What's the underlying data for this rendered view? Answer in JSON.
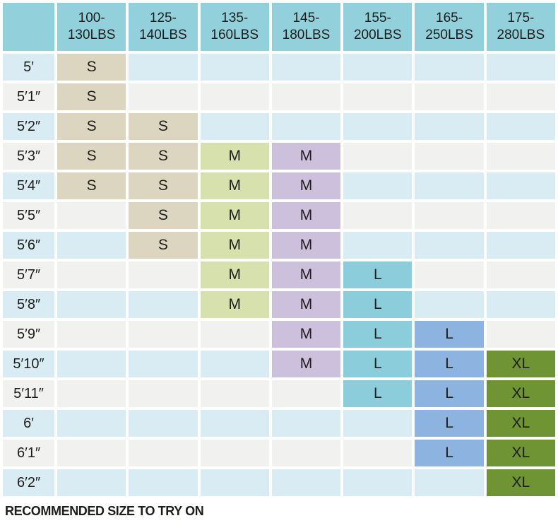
{
  "colors": {
    "page_background": "#ffffff",
    "header_fill": "#92d0dc",
    "row_fill_blue": "#daecf3",
    "row_fill_gray": "#f1f1ef",
    "size_s_fill": "#dcd6c0",
    "size_m_135_160_fill": "#d6e1ad",
    "size_m_145_180_fill": "#cdc0dd",
    "size_l_155_200_fill": "#8bcdda",
    "size_l_165_250_fill": "#8db4e0",
    "size_xl_fill": "#6e9433",
    "text": "#1d1d1b"
  },
  "chart_data": {
    "type": "table",
    "title": "",
    "corner_label": "",
    "weight_columns": [
      "100-130LBS",
      "125-140LBS",
      "135-160LBS",
      "145-180LBS",
      "155-200LBS",
      "165-250LBS",
      "175-280LBS"
    ],
    "column_fill_keys": [
      "size_s_fill",
      "size_s_fill",
      "size_m_135_160_fill",
      "size_m_145_180_fill",
      "size_l_155_200_fill",
      "size_l_165_250_fill",
      "size_xl_fill"
    ],
    "rows": [
      {
        "height": "5′",
        "sizes": [
          "S",
          null,
          null,
          null,
          null,
          null,
          null
        ]
      },
      {
        "height": "5′1″",
        "sizes": [
          "S",
          null,
          null,
          null,
          null,
          null,
          null
        ]
      },
      {
        "height": "5′2″",
        "sizes": [
          "S",
          "S",
          null,
          null,
          null,
          null,
          null
        ]
      },
      {
        "height": "5′3″",
        "sizes": [
          "S",
          "S",
          "M",
          "M",
          null,
          null,
          null
        ]
      },
      {
        "height": "5′4″",
        "sizes": [
          "S",
          "S",
          "M",
          "M",
          null,
          null,
          null
        ]
      },
      {
        "height": "5′5″",
        "sizes": [
          null,
          "S",
          "M",
          "M",
          null,
          null,
          null
        ]
      },
      {
        "height": "5′6″",
        "sizes": [
          null,
          "S",
          "M",
          "M",
          null,
          null,
          null
        ]
      },
      {
        "height": "5′7″",
        "sizes": [
          null,
          null,
          "M",
          "M",
          "L",
          null,
          null
        ]
      },
      {
        "height": "5′8″",
        "sizes": [
          null,
          null,
          "M",
          "M",
          "L",
          null,
          null
        ]
      },
      {
        "height": "5′9″",
        "sizes": [
          null,
          null,
          null,
          "M",
          "L",
          "L",
          null
        ]
      },
      {
        "height": "5′10″",
        "sizes": [
          null,
          null,
          null,
          "M",
          "L",
          "L",
          "XL"
        ]
      },
      {
        "height": "5′11″",
        "sizes": [
          null,
          null,
          null,
          null,
          "L",
          "L",
          "XL"
        ]
      },
      {
        "height": "6′",
        "sizes": [
          null,
          null,
          null,
          null,
          null,
          "L",
          "XL"
        ]
      },
      {
        "height": "6′1″",
        "sizes": [
          null,
          null,
          null,
          null,
          null,
          "L",
          "XL"
        ]
      },
      {
        "height": "6′2″",
        "sizes": [
          null,
          null,
          null,
          null,
          null,
          null,
          "XL"
        ]
      }
    ],
    "footnote": "RECOMMENDED SIZE TO TRY ON"
  }
}
